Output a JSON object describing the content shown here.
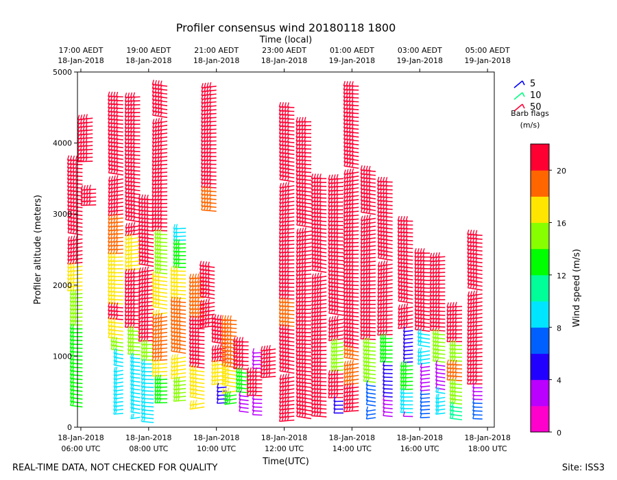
{
  "chart_data": {
    "type": "wind-barb-profile",
    "title": "Profiler consensus wind 20180118 1800",
    "top_axis_label": "Time (local)",
    "xlabel": "Time(UTC)",
    "ylabel": "Profiler altitude (meters)",
    "ylim": [
      0,
      5000
    ],
    "yticks": [
      0,
      1000,
      2000,
      3000,
      4000,
      5000
    ],
    "xlim_utc_hours": [
      5.9,
      18.2
    ],
    "bottom_ticks": [
      {
        "hour": 6,
        "date": "18-Jan-2018",
        "time": "06:00 UTC"
      },
      {
        "hour": 8,
        "date": "18-Jan-2018",
        "time": "08:00 UTC"
      },
      {
        "hour": 10,
        "date": "18-Jan-2018",
        "time": "10:00 UTC"
      },
      {
        "hour": 12,
        "date": "18-Jan-2018",
        "time": "12:00 UTC"
      },
      {
        "hour": 14,
        "date": "18-Jan-2018",
        "time": "14:00 UTC"
      },
      {
        "hour": 16,
        "date": "18-Jan-2018",
        "time": "16:00 UTC"
      },
      {
        "hour": 18,
        "date": "18-Jan-2018",
        "time": "18:00 UTC"
      }
    ],
    "top_ticks": [
      {
        "hour": 6,
        "time": "17:00 AEDT",
        "date": "18-Jan-2018"
      },
      {
        "hour": 8,
        "time": "19:00 AEDT",
        "date": "18-Jan-2018"
      },
      {
        "hour": 10,
        "time": "21:00 AEDT",
        "date": "18-Jan-2018"
      },
      {
        "hour": 12,
        "time": "23:00 AEDT",
        "date": "18-Jan-2018"
      },
      {
        "hour": 14,
        "time": "01:00 AEDT",
        "date": "19-Jan-2018"
      },
      {
        "hour": 16,
        "time": "03:00 AEDT",
        "date": "19-Jan-2018"
      },
      {
        "hour": 18,
        "time": "05:00 AEDT",
        "date": "19-Jan-2018"
      }
    ],
    "barb_flag_legend": {
      "title": "Barb flags",
      "units": "(m/s)",
      "entries": [
        {
          "label": "5",
          "speed": 5,
          "color": "#0000ff"
        },
        {
          "label": "10",
          "speed": 10,
          "color": "#00ff80"
        },
        {
          "label": "50",
          "speed": 50,
          "color": "#ff0033"
        }
      ]
    },
    "colorbar": {
      "label": "Wind speed (m/s)",
      "range": [
        0,
        22
      ],
      "ticks": [
        0,
        4,
        8,
        12,
        16,
        20
      ],
      "colors": [
        "#ff00cc",
        "#bb00ff",
        "#2200ff",
        "#0060ff",
        "#00e5ff",
        "#00ff99",
        "#00ff00",
        "#88ff00",
        "#ffe500",
        "#ff6600",
        "#ff0033"
      ]
    },
    "profiles": [
      {
        "hour": 6.05,
        "alt_min": 250,
        "alt_max": 3750,
        "segments": [
          [
            3750,
            22
          ],
          [
            3000,
            21
          ],
          [
            2300,
            17
          ],
          [
            1900,
            14
          ],
          [
            1400,
            12
          ],
          [
            250,
            13
          ]
        ]
      },
      {
        "hour": 6.35,
        "alt_min": 3700,
        "alt_max": 4350,
        "segments": [
          [
            4350,
            22
          ]
        ]
      },
      {
        "hour": 6.45,
        "alt_min": 3100,
        "alt_max": 3350,
        "segments": [
          [
            3350,
            21
          ]
        ]
      },
      {
        "hour": 7.25,
        "alt_min": 150,
        "alt_max": 4650,
        "segments": [
          [
            4650,
            22
          ],
          [
            3300,
            21
          ],
          [
            2950,
            19
          ],
          [
            2400,
            17
          ],
          [
            1700,
            20
          ],
          [
            1500,
            17
          ],
          [
            1200,
            14
          ],
          [
            1050,
            8
          ],
          [
            150,
            8
          ]
        ]
      },
      {
        "hour": 7.75,
        "alt_min": 100,
        "alt_max": 4650,
        "segments": [
          [
            4650,
            22
          ],
          [
            3200,
            21
          ],
          [
            2700,
            17
          ],
          [
            2200,
            20
          ],
          [
            1400,
            14
          ],
          [
            1000,
            8
          ],
          [
            100,
            8
          ]
        ]
      },
      {
        "hour": 8.15,
        "alt_min": 50,
        "alt_max": 3200,
        "segments": [
          [
            3200,
            22
          ],
          [
            2100,
            20
          ],
          [
            1200,
            14
          ],
          [
            900,
            9
          ],
          [
            50,
            8
          ]
        ]
      },
      {
        "hour": 8.55,
        "alt_min": 300,
        "alt_max": 4800,
        "segments": [
          [
            4800,
            22
          ],
          [
            3450,
            21
          ],
          [
            2750,
            15
          ],
          [
            2150,
            17
          ],
          [
            1600,
            19
          ],
          [
            900,
            16
          ],
          [
            700,
            13
          ],
          [
            300,
            14
          ]
        ]
      },
      {
        "hour": 9.1,
        "alt_min": 350,
        "alt_max": 2800,
        "segments": [
          [
            2800,
            9
          ],
          [
            2600,
            13
          ],
          [
            2200,
            17
          ],
          [
            1800,
            19
          ],
          [
            1000,
            17
          ],
          [
            700,
            14
          ],
          [
            350,
            16
          ]
        ]
      },
      {
        "hour": 9.65,
        "alt_min": 250,
        "alt_max": 2100,
        "segments": [
          [
            2100,
            19
          ],
          [
            1500,
            20
          ],
          [
            800,
            17
          ],
          [
            250,
            16
          ]
        ]
      },
      {
        "hour": 10.0,
        "alt_min": 3000,
        "alt_max": 4800,
        "segments": [
          [
            4800,
            22
          ],
          [
            3350,
            18
          ],
          [
            3000,
            20
          ]
        ]
      },
      {
        "hour": 9.95,
        "alt_min": 1400,
        "alt_max": 2250,
        "segments": [
          [
            2250,
            21
          ],
          [
            1700,
            22
          ],
          [
            1400,
            21
          ]
        ]
      },
      {
        "hour": 10.3,
        "alt_min": 300,
        "alt_max": 1500,
        "segments": [
          [
            1500,
            20
          ],
          [
            900,
            17
          ],
          [
            600,
            4
          ],
          [
            300,
            14
          ]
        ]
      },
      {
        "hour": 10.6,
        "alt_min": 300,
        "alt_max": 1500,
        "segments": [
          [
            1500,
            19
          ],
          [
            800,
            16
          ],
          [
            500,
            13
          ],
          [
            300,
            14
          ]
        ]
      },
      {
        "hour": 10.95,
        "alt_min": 200,
        "alt_max": 1200,
        "segments": [
          [
            1200,
            20
          ],
          [
            800,
            13
          ],
          [
            450,
            2
          ],
          [
            200,
            3
          ]
        ]
      },
      {
        "hour": 11.35,
        "alt_min": 150,
        "alt_max": 1050,
        "segments": [
          [
            1050,
            3
          ],
          [
            800,
            21
          ],
          [
            400,
            3
          ],
          [
            150,
            13
          ]
        ]
      },
      {
        "hour": 11.75,
        "alt_min": 700,
        "alt_max": 1100,
        "segments": [
          [
            1100,
            22
          ]
        ]
      },
      {
        "hour": 12.3,
        "alt_min": 50,
        "alt_max": 4500,
        "segments": [
          [
            4500,
            22
          ],
          [
            3800,
            21
          ],
          [
            2300,
            22
          ],
          [
            1800,
            18
          ],
          [
            1400,
            21
          ],
          [
            700,
            22
          ],
          [
            300,
            22
          ],
          [
            50,
            20
          ]
        ]
      },
      {
        "hour": 12.8,
        "alt_min": 100,
        "alt_max": 4300,
        "segments": [
          [
            4300,
            22
          ],
          [
            2900,
            21
          ],
          [
            1700,
            22
          ],
          [
            1100,
            20
          ],
          [
            800,
            22
          ],
          [
            100,
            22
          ]
        ]
      },
      {
        "hour": 13.25,
        "alt_min": 100,
        "alt_max": 3500,
        "segments": [
          [
            3500,
            22
          ],
          [
            1500,
            22
          ],
          [
            1100,
            21
          ],
          [
            600,
            20
          ],
          [
            100,
            22
          ]
        ]
      },
      {
        "hour": 13.75,
        "alt_min": 150,
        "alt_max": 3500,
        "segments": [
          [
            3500,
            22
          ],
          [
            1600,
            22
          ],
          [
            1200,
            14
          ],
          [
            800,
            22
          ],
          [
            400,
            4
          ],
          [
            150,
            4
          ]
        ]
      },
      {
        "hour": 14.2,
        "alt_min": 200,
        "alt_max": 4800,
        "segments": [
          [
            4800,
            22
          ],
          [
            3050,
            22
          ],
          [
            1100,
            18
          ],
          [
            600,
            22
          ],
          [
            200,
            4
          ]
        ]
      },
      {
        "hour": 14.7,
        "alt_min": 100,
        "alt_max": 3600,
        "segments": [
          [
            3600,
            22
          ],
          [
            2000,
            22
          ],
          [
            1500,
            20
          ],
          [
            1200,
            14
          ],
          [
            600,
            6
          ],
          [
            100,
            3
          ]
        ]
      },
      {
        "hour": 15.2,
        "alt_min": 100,
        "alt_max": 3450,
        "segments": [
          [
            3450,
            22
          ],
          [
            1700,
            21
          ],
          [
            1300,
            13
          ],
          [
            900,
            5
          ],
          [
            400,
            3
          ],
          [
            100,
            2
          ]
        ]
      },
      {
        "hour": 15.8,
        "alt_min": 150,
        "alt_max": 2900,
        "segments": [
          [
            2900,
            22
          ],
          [
            1400,
            4
          ],
          [
            900,
            13
          ],
          [
            500,
            9
          ],
          [
            150,
            2
          ]
        ]
      },
      {
        "hour": 16.3,
        "alt_min": 100,
        "alt_max": 2450,
        "segments": [
          [
            2450,
            22
          ],
          [
            1300,
            9
          ],
          [
            900,
            2
          ],
          [
            500,
            6
          ],
          [
            100,
            5
          ]
        ]
      },
      {
        "hour": 16.75,
        "alt_min": 150,
        "alt_max": 2400,
        "segments": [
          [
            2400,
            22
          ],
          [
            1300,
            14
          ],
          [
            900,
            3
          ],
          [
            500,
            8
          ],
          [
            150,
            3
          ]
        ]
      },
      {
        "hour": 17.25,
        "alt_min": 100,
        "alt_max": 1700,
        "segments": [
          [
            1700,
            22
          ],
          [
            1200,
            15
          ],
          [
            900,
            19
          ],
          [
            600,
            14
          ],
          [
            300,
            10
          ],
          [
            100,
            14
          ]
        ]
      },
      {
        "hour": 17.85,
        "alt_min": 100,
        "alt_max": 2700,
        "segments": [
          [
            2700,
            22
          ],
          [
            1400,
            21
          ],
          [
            900,
            22
          ],
          [
            600,
            3
          ],
          [
            350,
            6
          ],
          [
            100,
            4
          ]
        ]
      }
    ]
  },
  "footer": {
    "left": "REAL-TIME DATA, NOT CHECKED FOR QUALITY",
    "right": "Site: ISS3"
  }
}
